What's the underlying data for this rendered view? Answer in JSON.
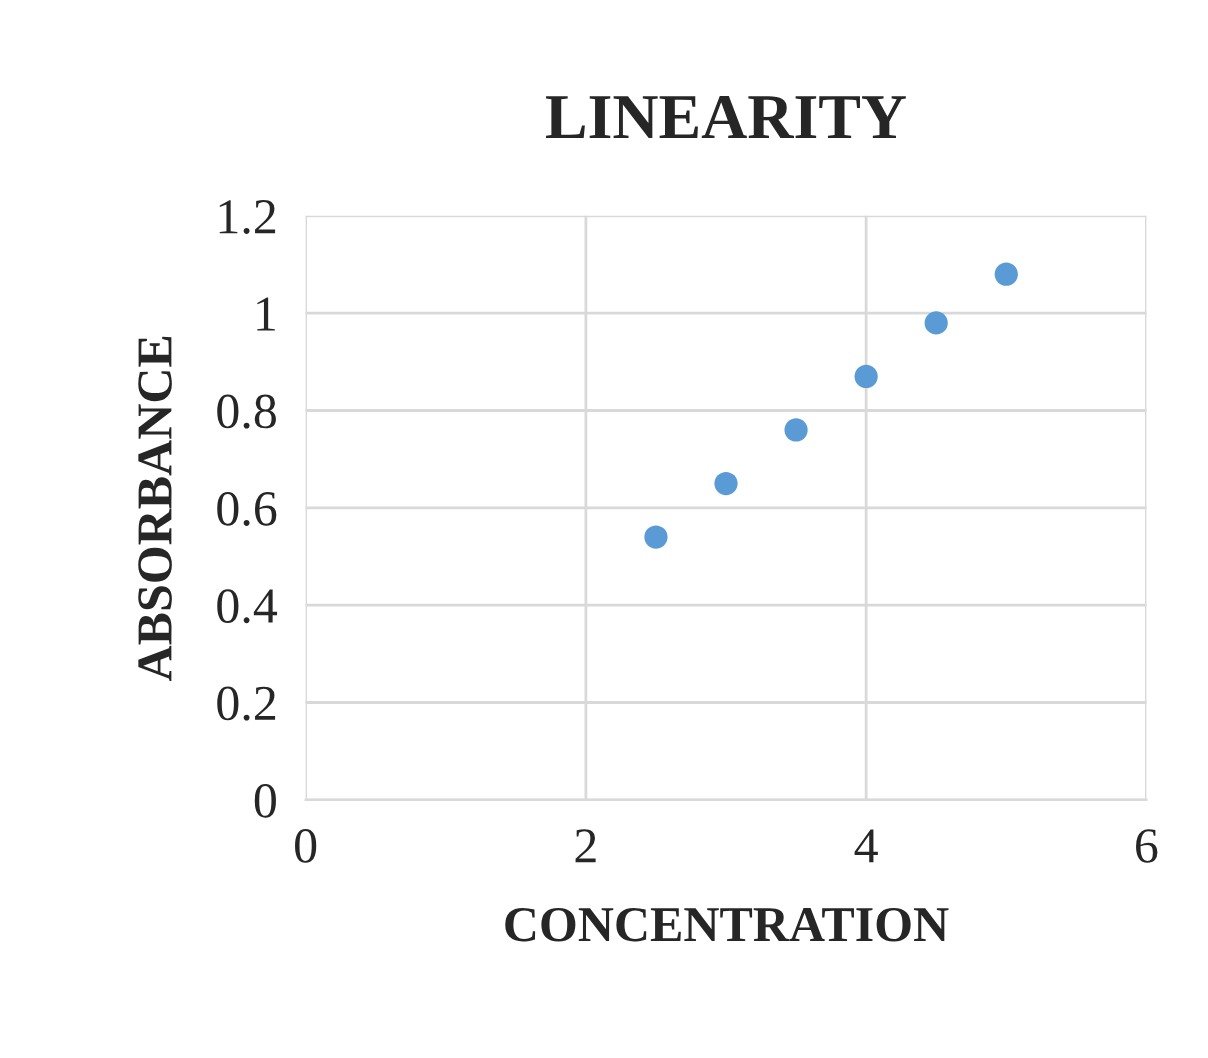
{
  "chart_data": {
    "type": "scatter",
    "title": "LINEARITY",
    "xlabel": "CONCENTRATION",
    "ylabel": "ABSORBANCE",
    "x": [
      2.5,
      3,
      3.5,
      4,
      4.5,
      5
    ],
    "series": [
      {
        "color": "#5b9bd5",
        "values": [
          0.54,
          0.65,
          0.76,
          0.87,
          0.98,
          1.08
        ]
      }
    ],
    "xlim": [
      0,
      6
    ],
    "xticks": [
      0,
      2,
      4,
      6
    ],
    "ylim": [
      0,
      1.2
    ],
    "yticks": [
      0,
      {
        "value": 0.2,
        "label": "0.2"
      },
      {
        "value": 0.4,
        "label": "0.4"
      },
      {
        "value": 0.6,
        "label": "0.6"
      },
      {
        "value": 0.8,
        "label": "0.8"
      },
      1,
      {
        "value": 1.2,
        "label": "1.2"
      }
    ],
    "grid": true,
    "marker": "circle"
  }
}
